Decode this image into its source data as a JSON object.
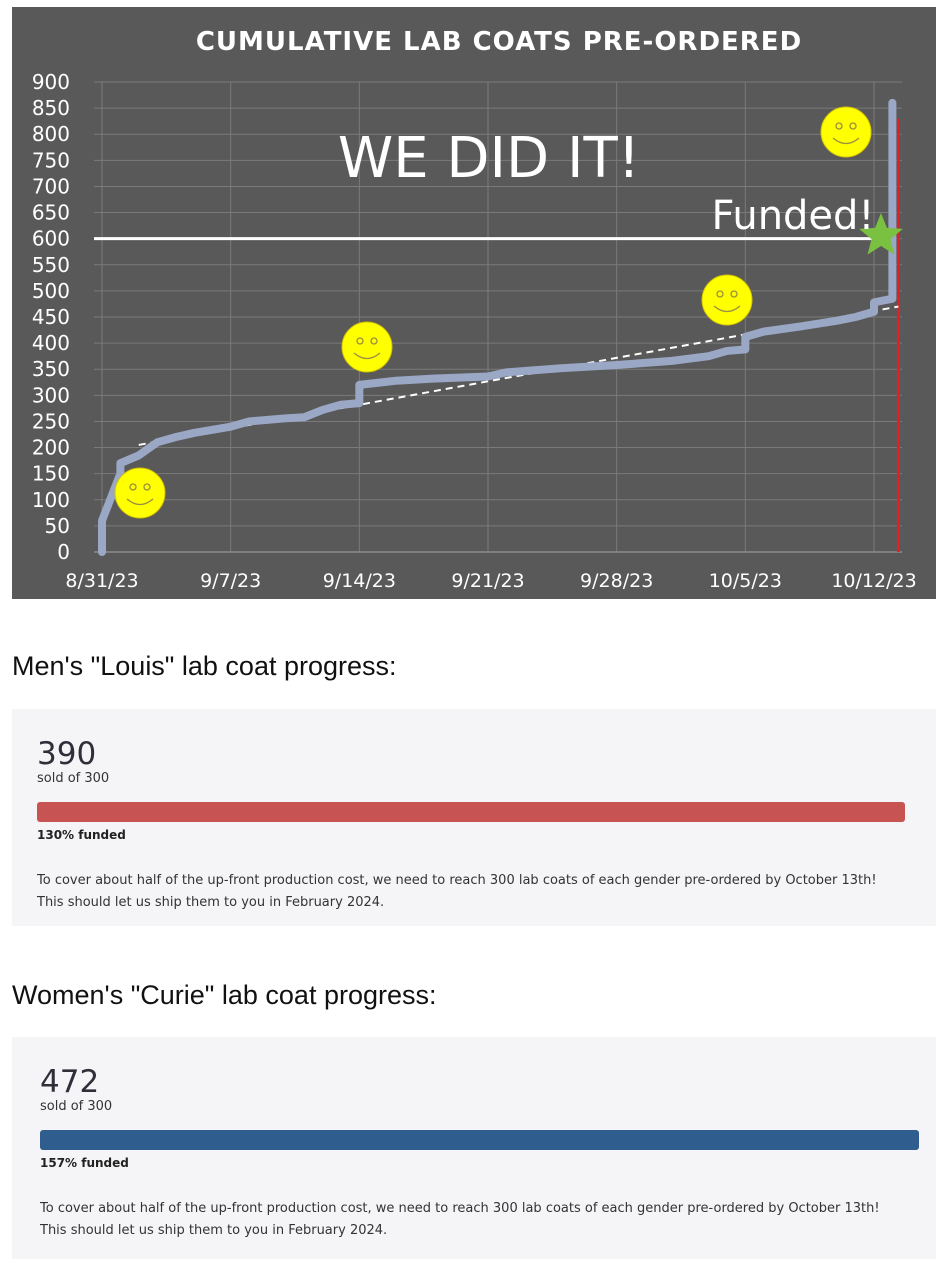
{
  "chart_data": {
    "type": "line",
    "title": "CUMULATIVE LAB COATS PRE-ORDERED",
    "x_ticks": [
      "8/31/23",
      "9/7/23",
      "9/14/23",
      "9/21/23",
      "9/28/23",
      "10/5/23",
      "10/12/23"
    ],
    "y_ticks": [
      0,
      50,
      100,
      150,
      200,
      250,
      300,
      350,
      400,
      450,
      500,
      550,
      600,
      650,
      700,
      750,
      800,
      850,
      900
    ],
    "ylim": [
      0,
      900
    ],
    "xlim": [
      "8/31/23",
      "10/13/23"
    ],
    "grid": true,
    "annotations": {
      "headline": "WE DID IT!",
      "funded": "Funded!",
      "goal_value": 600,
      "deadline_date": "10/13/23"
    },
    "series": [
      {
        "color": "#9aa8c6",
        "points": [
          [
            "8/31/23",
            0
          ],
          [
            "8/31/23",
            60
          ],
          [
            "9/1/23",
            150
          ],
          [
            "9/1/23",
            170
          ],
          [
            "9/2/23",
            185
          ],
          [
            "9/3/23",
            210
          ],
          [
            "9/4/23",
            220
          ],
          [
            "9/5/23",
            228
          ],
          [
            "9/7/23",
            240
          ],
          [
            "9/8/23",
            250
          ],
          [
            "9/10/23",
            256
          ],
          [
            "9/11/23",
            258
          ],
          [
            "9/12/23",
            272
          ],
          [
            "9/13/23",
            282
          ],
          [
            "9/14/23",
            285
          ],
          [
            "9/14/23",
            320
          ],
          [
            "9/16/23",
            328
          ],
          [
            "9/18/23",
            332
          ],
          [
            "9/21/23",
            336
          ],
          [
            "9/22/23",
            344
          ],
          [
            "9/25/23",
            352
          ],
          [
            "9/28/23",
            358
          ],
          [
            "10/1/23",
            366
          ],
          [
            "10/3/23",
            375
          ],
          [
            "10/4/23",
            385
          ],
          [
            "10/5/23",
            388
          ],
          [
            "10/5/23",
            412
          ],
          [
            "10/6/23",
            422
          ],
          [
            "10/8/23",
            432
          ],
          [
            "10/10/23",
            443
          ],
          [
            "10/11/23",
            450
          ],
          [
            "10/12/23",
            460
          ],
          [
            "10/12/23",
            478
          ],
          [
            "10/13/23",
            485
          ],
          [
            "10/13/23",
            545
          ],
          [
            "10/13/23",
            570
          ],
          [
            "10/13/23",
            860
          ]
        ]
      },
      {
        "style": "dashed",
        "color": "#ffffff",
        "points": [
          [
            "9/2/23",
            205
          ],
          [
            "10/13/23",
            470
          ]
        ]
      }
    ],
    "colors": {
      "background": "#595959",
      "series": "#9aa8c6",
      "goal_line": "#ffffff",
      "deadline_line": "#d8232a",
      "star": "#7ac142",
      "smiley": "#ffff00"
    }
  },
  "sections": [
    {
      "title": "Men's \"Louis\" lab coat progress:",
      "count": "390",
      "sold_label": "sold of 300",
      "funded_label": "130% funded",
      "progress_fraction": 1.0,
      "bar_color": "#c75452",
      "description": "To cover about half of the up-front production cost, we need to reach 300 lab coats of each gender pre-ordered by October 13th! This should let us ship them to you in February 2024."
    },
    {
      "title": "Women's \"Curie\" lab coat progress:",
      "count": "472",
      "sold_label": "sold of 300",
      "funded_label": "157% funded",
      "progress_fraction": 1.0,
      "bar_color": "#2f5e8e",
      "description": "To cover about half of the up-front production cost, we need to reach 300 lab coats of each gender pre-ordered by October 13th! This should let us ship them to you in February 2024."
    }
  ]
}
